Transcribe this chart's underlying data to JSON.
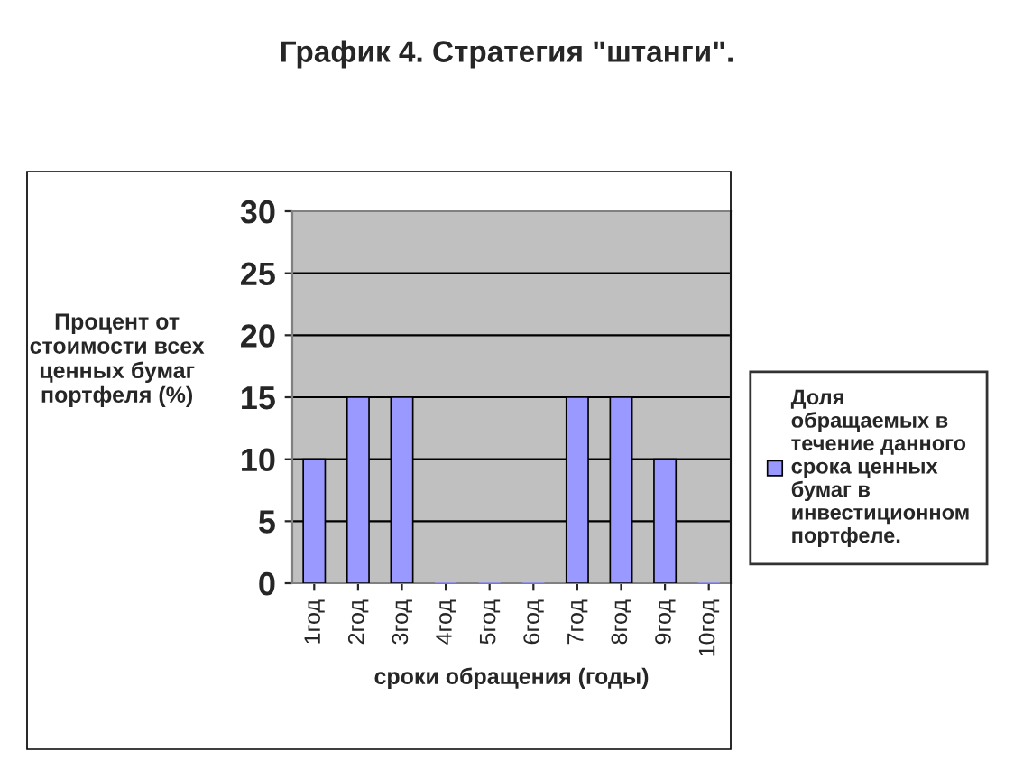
{
  "chart_data": {
    "type": "bar",
    "title": "График 4. Стратегия \"штанги\".",
    "categories": [
      "1год",
      "2год",
      "3год",
      "4год",
      "5год",
      "6год",
      "7год",
      "8год",
      "9год",
      "10год"
    ],
    "series": [
      {
        "name": "Доля\nобращаемых в\nтечение данного\nсрока ценных\nбумаг в\nинвестиционном\nпортфеле.",
        "color": "#9999ff",
        "values": [
          10,
          15,
          15,
          0,
          0,
          0,
          15,
          15,
          10,
          0
        ]
      }
    ],
    "ylim": [
      0,
      30
    ],
    "yticks": [
      0,
      5,
      10,
      15,
      20,
      25,
      30
    ],
    "grid": "y",
    "legend": "right",
    "xlabel": "сроки обращения (годы)",
    "ylabel": "Процент от\nстоимости всех\nценных бумаг\nпортфеля (%)"
  }
}
